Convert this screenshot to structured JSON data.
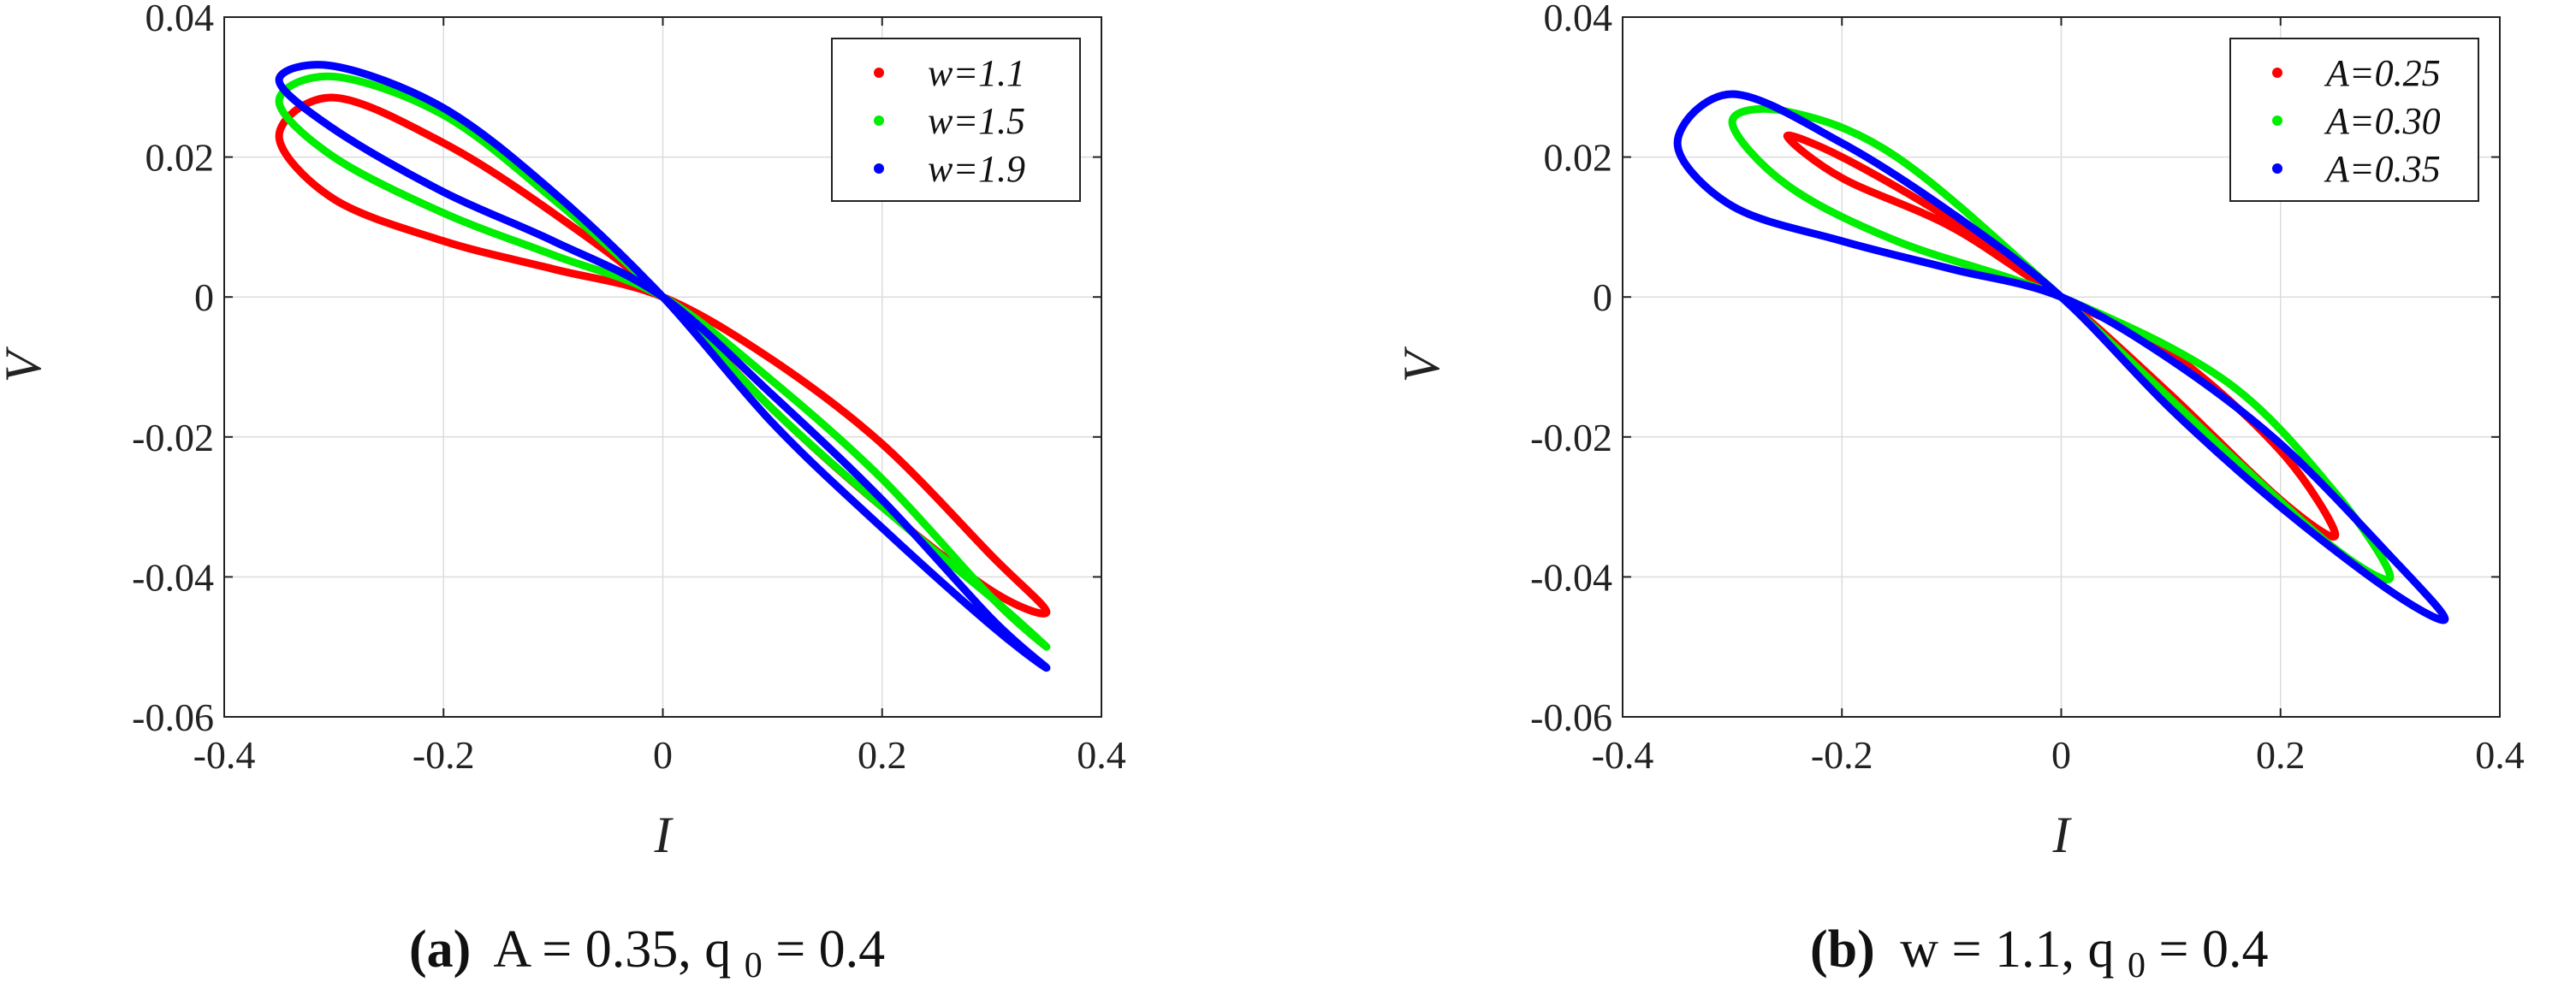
{
  "chart_data": [
    {
      "type": "line",
      "panel_label": "(a)",
      "caption_math": "A = 0.35, q0 = 0.4",
      "caption_text": "A = 0.35, q",
      "caption_sub": "0",
      "caption_tail": " = 0.4",
      "xlabel": "I",
      "ylabel": "V",
      "xlim": [
        -0.4,
        0.4
      ],
      "ylim": [
        -0.06,
        0.04
      ],
      "xticks": [
        -0.4,
        -0.2,
        0,
        0.2,
        0.4
      ],
      "xtick_labels": [
        "-0.4",
        "-0.2",
        "0",
        "0.2",
        "0.4"
      ],
      "yticks": [
        0.04,
        0.02,
        0,
        -0.02,
        -0.04,
        -0.06
      ],
      "ytick_labels": [
        "0.04",
        "0.02",
        "0",
        "-0.02",
        "-0.04",
        "-0.06"
      ],
      "grid": true,
      "legend_position": "top-right",
      "series": [
        {
          "name": "w=1.1",
          "color": "#ff0000",
          "A": 0.35,
          "w": 1.1,
          "x": [
            0.35,
            0.3,
            0.2,
            0.1,
            0.0,
            -0.1,
            -0.2,
            -0.3,
            -0.35,
            -0.3,
            -0.2,
            -0.1,
            0.0,
            0.1,
            0.2,
            0.3,
            0.35
          ],
          "y": [
            -0.045,
            -0.042,
            -0.03,
            -0.016,
            0.0,
            0.012,
            0.022,
            0.0285,
            0.023,
            0.014,
            0.008,
            0.004,
            0.0,
            -0.009,
            -0.021,
            -0.037,
            -0.045
          ]
        },
        {
          "name": "w=1.5",
          "color": "#00ee00",
          "A": 0.35,
          "w": 1.5,
          "x": [
            0.35,
            0.3,
            0.2,
            0.1,
            0.0,
            -0.1,
            -0.2,
            -0.3,
            -0.35,
            -0.3,
            -0.2,
            -0.1,
            0.0,
            0.1,
            0.2,
            0.3,
            0.35
          ],
          "y": [
            -0.05,
            -0.043,
            -0.03,
            -0.016,
            0.0,
            0.014,
            0.026,
            0.0315,
            0.028,
            0.02,
            0.012,
            0.006,
            0.0,
            -0.012,
            -0.026,
            -0.043,
            -0.05
          ]
        },
        {
          "name": "w=1.9",
          "color": "#0000ff",
          "A": 0.35,
          "w": 1.9,
          "x": [
            0.35,
            0.3,
            0.2,
            0.1,
            0.0,
            -0.1,
            -0.2,
            -0.3,
            -0.35,
            -0.3,
            -0.2,
            -0.1,
            0.0,
            0.1,
            0.2,
            0.3,
            0.35
          ],
          "y": [
            -0.053,
            -0.047,
            -0.033,
            -0.018,
            0.0,
            0.015,
            0.027,
            0.033,
            0.031,
            0.024,
            0.015,
            0.008,
            0.0,
            -0.014,
            -0.029,
            -0.046,
            -0.053
          ]
        }
      ]
    },
    {
      "type": "line",
      "panel_label": "(b)",
      "caption_math": "w = 1.1, q0 = 0.4",
      "caption_text": "w = 1.1, q",
      "caption_sub": "0",
      "caption_tail": " = 0.4",
      "xlabel": "I",
      "ylabel": "V",
      "xlim": [
        -0.4,
        0.4
      ],
      "ylim": [
        -0.06,
        0.04
      ],
      "xticks": [
        -0.4,
        -0.2,
        0,
        0.2,
        0.4
      ],
      "xtick_labels": [
        "-0.4",
        "-0.2",
        "0",
        "0.2",
        "0.4"
      ],
      "yticks": [
        0.04,
        0.02,
        0,
        -0.02,
        -0.04,
        -0.06
      ],
      "ytick_labels": [
        "0.04",
        "0.02",
        "0",
        "-0.02",
        "-0.04",
        "-0.06"
      ],
      "grid": true,
      "legend_position": "top-right",
      "series": [
        {
          "name": "A=0.25",
          "color": "#ff0000",
          "A": 0.25,
          "w": 1.1,
          "x": [
            0.25,
            0.2,
            0.1,
            0.0,
            -0.1,
            -0.2,
            -0.25,
            -0.2,
            -0.1,
            0.0,
            0.1,
            0.2,
            0.25
          ],
          "y": [
            -0.034,
            -0.029,
            -0.014,
            0.0,
            0.011,
            0.02,
            0.023,
            0.017,
            0.01,
            0.0,
            -0.008,
            -0.022,
            -0.034
          ]
        },
        {
          "name": "A=0.30",
          "color": "#00ee00",
          "A": 0.3,
          "w": 1.1,
          "x": [
            0.3,
            0.25,
            0.15,
            0.0,
            -0.15,
            -0.25,
            -0.3,
            -0.25,
            -0.15,
            0.0,
            0.15,
            0.25,
            0.3
          ],
          "y": [
            -0.04,
            -0.036,
            -0.022,
            0.0,
            0.02,
            0.0265,
            0.025,
            0.016,
            0.008,
            0.0,
            -0.012,
            -0.028,
            -0.04
          ]
        },
        {
          "name": "A=0.35",
          "color": "#0000ff",
          "A": 0.35,
          "w": 1.1,
          "x": [
            0.35,
            0.3,
            0.2,
            0.1,
            0.0,
            -0.1,
            -0.2,
            -0.3,
            -0.35,
            -0.3,
            -0.2,
            -0.1,
            0.0,
            0.1,
            0.2,
            0.3,
            0.35
          ],
          "y": [
            -0.046,
            -0.042,
            -0.03,
            -0.016,
            0.0,
            0.012,
            0.022,
            0.029,
            0.022,
            0.013,
            0.008,
            0.004,
            0.0,
            -0.009,
            -0.021,
            -0.037,
            -0.046
          ]
        }
      ]
    }
  ]
}
